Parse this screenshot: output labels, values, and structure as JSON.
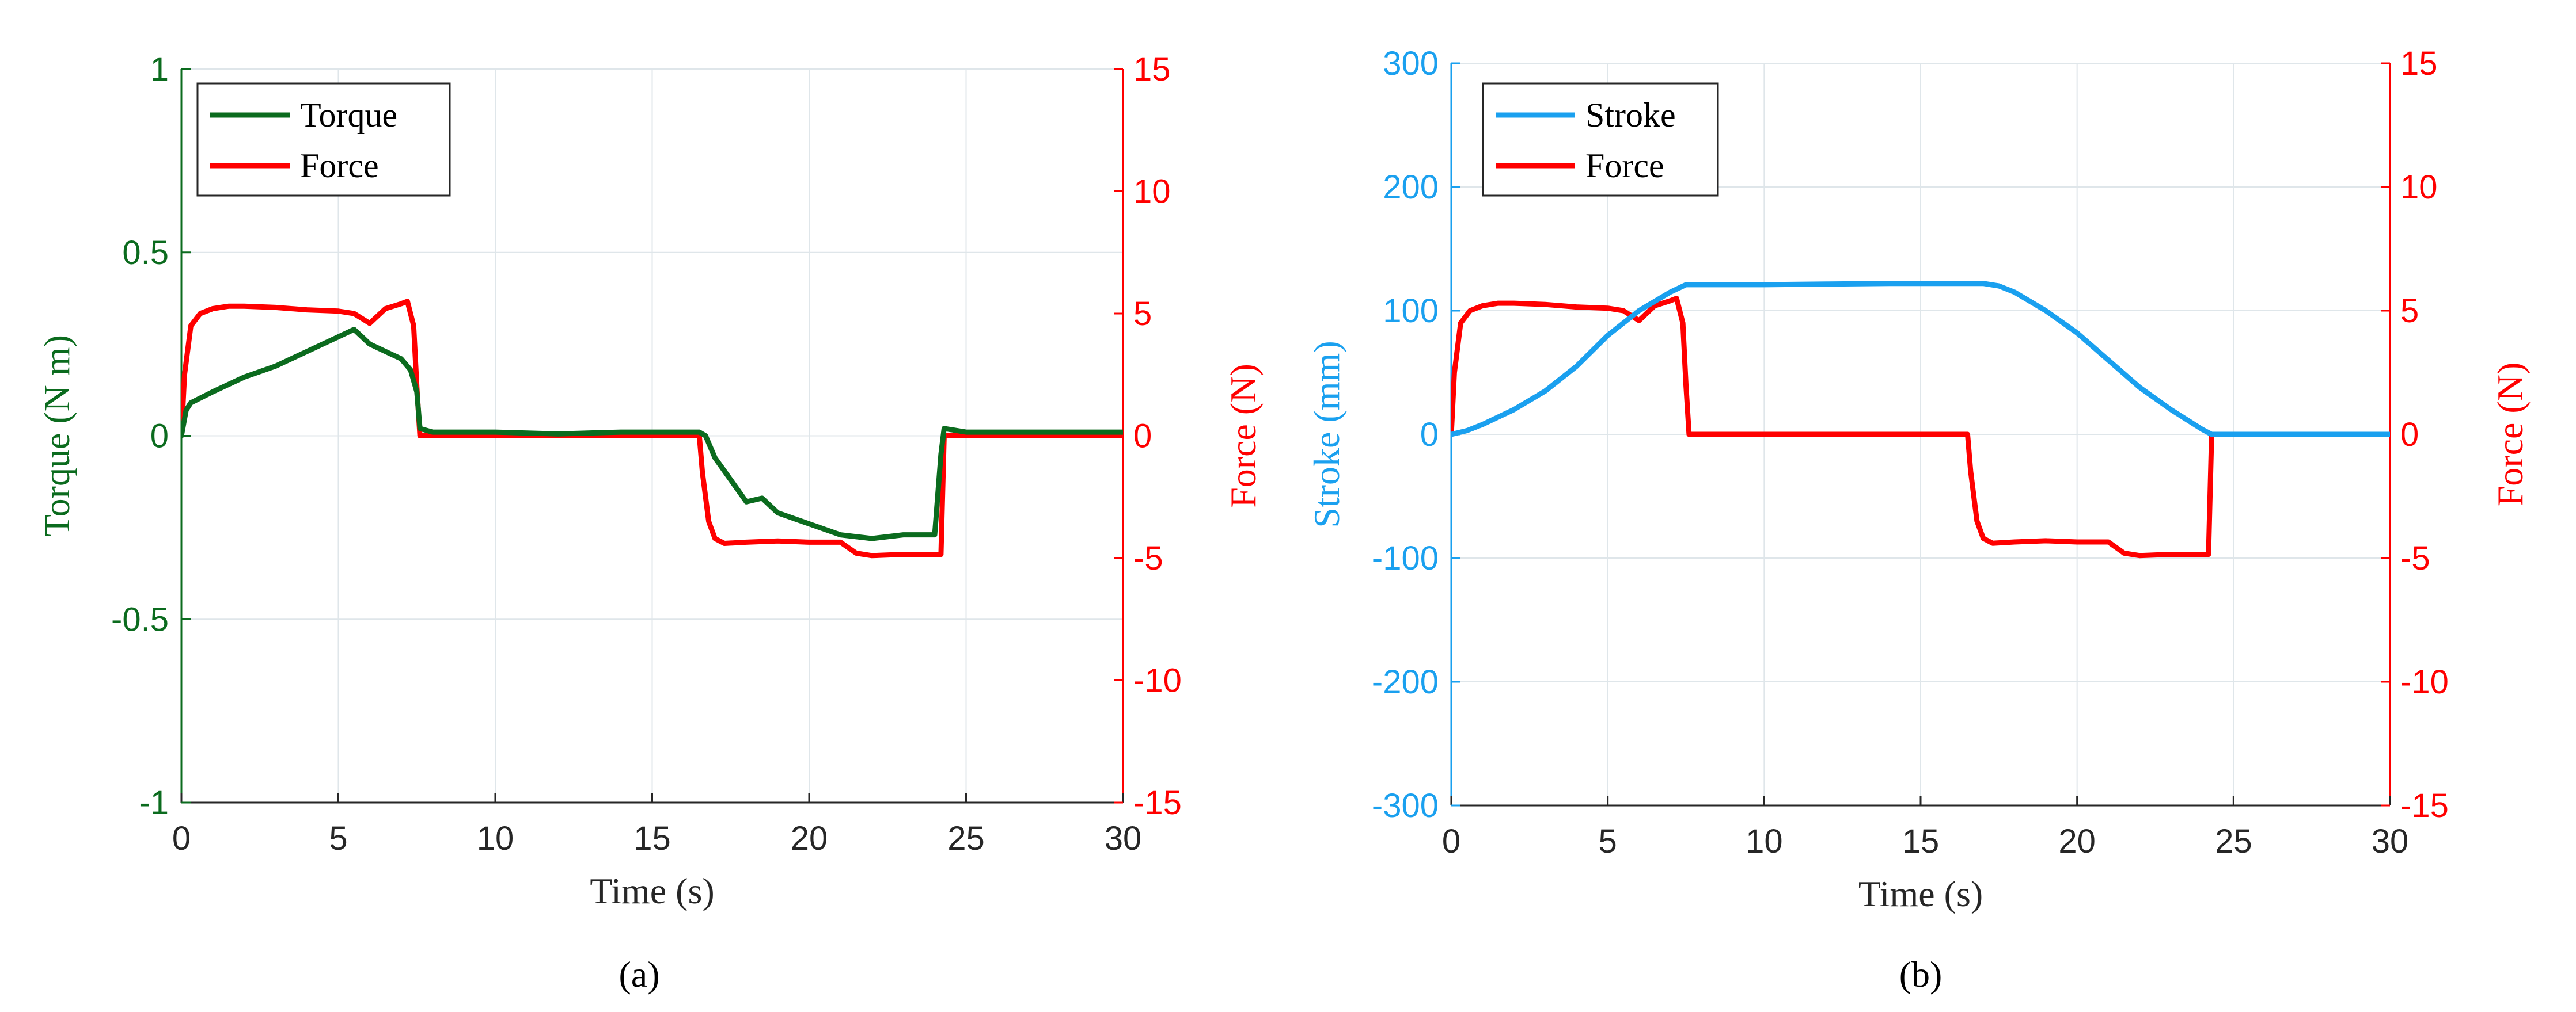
{
  "colors": {
    "torque": "#0b6b1e",
    "force": "#ff0000",
    "stroke": "#1aa0ef",
    "grid": "#dfe6ea",
    "axis": "#262626"
  },
  "chart_data": [
    {
      "panel": "a",
      "caption": "(a)",
      "type": "line",
      "xlabel": "Time (s)",
      "xlim": [
        0,
        30
      ],
      "xticks": [
        0,
        5,
        10,
        15,
        20,
        25,
        30
      ],
      "ylabel_left": "Torque (N m)",
      "ylim_left": [
        -1,
        1
      ],
      "yticks_left": [
        -1,
        -0.5,
        0,
        0.5,
        1
      ],
      "ylabel_right": "Force (N)",
      "ylim_right": [
        -15,
        15
      ],
      "yticks_right": [
        -15,
        -10,
        -5,
        0,
        5,
        10,
        15
      ],
      "grid": true,
      "legend_position": "top-left",
      "series": [
        {
          "name": "Torque",
          "axis": "left",
          "color_key": "torque",
          "x": [
            0,
            0.15,
            0.3,
            1,
            2,
            3,
            4,
            5,
            5.5,
            6,
            6.5,
            7,
            7.3,
            7.5,
            7.6,
            8,
            10,
            12,
            14,
            16,
            16.5,
            16.7,
            17,
            17.5,
            18,
            18.5,
            19,
            20,
            21,
            22,
            23,
            24,
            24.2,
            24.3,
            25,
            27,
            30
          ],
          "y": [
            0,
            0.07,
            0.09,
            0.12,
            0.16,
            0.19,
            0.23,
            0.27,
            0.29,
            0.25,
            0.23,
            0.21,
            0.18,
            0.12,
            0.02,
            0.01,
            0.01,
            0.005,
            0.01,
            0.01,
            0.01,
            0,
            -0.06,
            -0.12,
            -0.18,
            -0.17,
            -0.21,
            -0.24,
            -0.27,
            -0.28,
            -0.27,
            -0.27,
            -0.05,
            0.02,
            0.01,
            0.01,
            0.01
          ]
        },
        {
          "name": "Force",
          "axis": "right",
          "color_key": "force",
          "x": [
            0,
            0.1,
            0.3,
            0.6,
            1,
            1.5,
            2,
            3,
            4,
            5,
            5.5,
            6,
            6.5,
            7,
            7.2,
            7.4,
            7.5,
            7.6,
            10,
            15,
            16.5,
            16.6,
            16.8,
            17,
            17.3,
            18,
            19,
            20,
            21,
            21.5,
            22,
            23,
            24,
            24.2,
            24.3,
            27,
            30
          ],
          "y": [
            0,
            2.5,
            4.5,
            5,
            5.2,
            5.3,
            5.3,
            5.25,
            5.15,
            5.1,
            5.0,
            4.6,
            5.2,
            5.4,
            5.5,
            4.5,
            2.0,
            0,
            0,
            0,
            0,
            -1.5,
            -3.5,
            -4.2,
            -4.4,
            -4.35,
            -4.3,
            -4.35,
            -4.35,
            -4.8,
            -4.9,
            -4.85,
            -4.85,
            -4.85,
            0,
            0,
            0
          ]
        }
      ]
    },
    {
      "panel": "b",
      "caption": "(b)",
      "type": "line",
      "xlabel": "Time (s)",
      "xlim": [
        0,
        30
      ],
      "xticks": [
        0,
        5,
        10,
        15,
        20,
        25,
        30
      ],
      "ylabel_left": "Stroke (mm)",
      "ylim_left": [
        -300,
        300
      ],
      "yticks_left": [
        -300,
        -200,
        -100,
        0,
        100,
        200,
        300
      ],
      "ylabel_right": "Force (N)",
      "ylim_right": [
        -15,
        15
      ],
      "yticks_right": [
        -15,
        -10,
        -5,
        0,
        5,
        10,
        15
      ],
      "grid": true,
      "legend_position": "top-left",
      "series": [
        {
          "name": "Stroke",
          "axis": "left",
          "color_key": "stroke",
          "x": [
            0,
            0.5,
            1,
            2,
            3,
            4,
            5,
            6,
            7,
            7.5,
            8,
            10,
            12,
            14,
            16,
            17,
            17.5,
            18,
            19,
            20,
            21,
            22,
            23,
            24,
            24.3,
            30
          ],
          "y": [
            0,
            3,
            8,
            20,
            35,
            55,
            80,
            100,
            115,
            121,
            121,
            121,
            121.5,
            122,
            122,
            122,
            120,
            115,
            100,
            82,
            60,
            38,
            20,
            4,
            0,
            0
          ]
        },
        {
          "name": "Force",
          "axis": "right",
          "color_key": "force",
          "x": [
            0,
            0.1,
            0.3,
            0.6,
            1,
            1.5,
            2,
            3,
            4,
            5,
            5.5,
            6,
            6.5,
            7,
            7.2,
            7.4,
            7.5,
            7.6,
            10,
            15,
            16.5,
            16.6,
            16.8,
            17,
            17.3,
            18,
            19,
            20,
            21,
            21.5,
            22,
            23,
            24,
            24.2,
            24.3,
            27,
            30
          ],
          "y": [
            0,
            2.5,
            4.5,
            5,
            5.2,
            5.3,
            5.3,
            5.25,
            5.15,
            5.1,
            5.0,
            4.6,
            5.2,
            5.4,
            5.5,
            4.5,
            2.0,
            0,
            0,
            0,
            0,
            -1.5,
            -3.5,
            -4.2,
            -4.4,
            -4.35,
            -4.3,
            -4.35,
            -4.35,
            -4.8,
            -4.9,
            -4.85,
            -4.85,
            -4.85,
            0,
            0,
            0
          ]
        }
      ]
    }
  ]
}
